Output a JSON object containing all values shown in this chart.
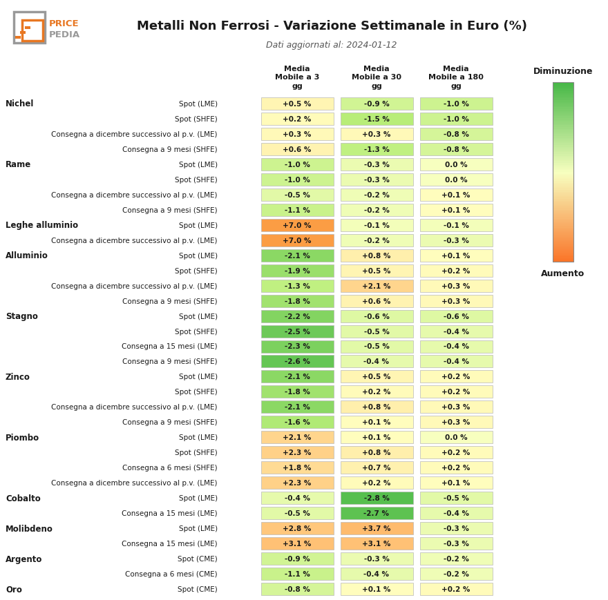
{
  "title": "Metalli Non Ferrosi - Variazione Settimanale in Euro (%)",
  "subtitle": "Dati aggiornati al: 2024-01-12",
  "col_headers": [
    "Media\nMobile a 3\ngg",
    "Media\nMobile a 30\ngg",
    "Media\nMobile a 180\ngg"
  ],
  "legend_top": "Diminuzione",
  "legend_bottom": "Aumento",
  "rows": [
    {
      "group": "Nichel",
      "label": "Spot (LME)",
      "vals": [
        0.5,
        -0.9,
        -1.0
      ]
    },
    {
      "group": null,
      "label": "Spot (SHFE)",
      "vals": [
        0.2,
        -1.5,
        -1.0
      ]
    },
    {
      "group": null,
      "label": "Consegna a dicembre successivo al p.v. (LME)",
      "vals": [
        0.3,
        0.3,
        -0.8
      ]
    },
    {
      "group": null,
      "label": "Consegna a 9 mesi (SHFE)",
      "vals": [
        0.6,
        -1.3,
        -0.8
      ]
    },
    {
      "group": "Rame",
      "label": "Spot (LME)",
      "vals": [
        -1.0,
        -0.3,
        0.0
      ]
    },
    {
      "group": null,
      "label": "Spot (SHFE)",
      "vals": [
        -1.0,
        -0.3,
        0.0
      ]
    },
    {
      "group": null,
      "label": "Consegna a dicembre successivo al p.v. (LME)",
      "vals": [
        -0.5,
        -0.2,
        0.1
      ]
    },
    {
      "group": null,
      "label": "Consegna a 9 mesi (SHFE)",
      "vals": [
        -1.1,
        -0.2,
        0.1
      ]
    },
    {
      "group": "Leghe alluminio",
      "label": "Spot (LME)",
      "vals": [
        7.0,
        -0.1,
        -0.1
      ]
    },
    {
      "group": null,
      "label": "Consegna a dicembre successivo al p.v. (LME)",
      "vals": [
        7.0,
        -0.2,
        -0.3
      ]
    },
    {
      "group": "Alluminio",
      "label": "Spot (LME)",
      "vals": [
        -2.1,
        0.8,
        0.1
      ]
    },
    {
      "group": null,
      "label": "Spot (SHFE)",
      "vals": [
        -1.9,
        0.5,
        0.2
      ]
    },
    {
      "group": null,
      "label": "Consegna a dicembre successivo al p.v. (LME)",
      "vals": [
        -1.3,
        2.1,
        0.3
      ]
    },
    {
      "group": null,
      "label": "Consegna a 9 mesi (SHFE)",
      "vals": [
        -1.8,
        0.6,
        0.3
      ]
    },
    {
      "group": "Stagno",
      "label": "Spot (LME)",
      "vals": [
        -2.2,
        -0.6,
        -0.6
      ]
    },
    {
      "group": null,
      "label": "Spot (SHFE)",
      "vals": [
        -2.5,
        -0.5,
        -0.4
      ]
    },
    {
      "group": null,
      "label": "Consegna a 15 mesi (LME)",
      "vals": [
        -2.3,
        -0.5,
        -0.4
      ]
    },
    {
      "group": null,
      "label": "Consegna a 9 mesi (SHFE)",
      "vals": [
        -2.6,
        -0.4,
        -0.4
      ]
    },
    {
      "group": "Zinco",
      "label": "Spot (LME)",
      "vals": [
        -2.1,
        0.5,
        0.2
      ]
    },
    {
      "group": null,
      "label": "Spot (SHFE)",
      "vals": [
        -1.8,
        0.2,
        0.2
      ]
    },
    {
      "group": null,
      "label": "Consegna a dicembre successivo al p.v. (LME)",
      "vals": [
        -2.1,
        0.8,
        0.3
      ]
    },
    {
      "group": null,
      "label": "Consegna a 9 mesi (SHFE)",
      "vals": [
        -1.6,
        0.1,
        0.3
      ]
    },
    {
      "group": "Piombo",
      "label": "Spot (LME)",
      "vals": [
        2.1,
        0.1,
        0.0
      ]
    },
    {
      "group": null,
      "label": "Spot (SHFE)",
      "vals": [
        2.3,
        0.8,
        0.2
      ]
    },
    {
      "group": null,
      "label": "Consegna a 6 mesi (SHFE)",
      "vals": [
        1.8,
        0.7,
        0.2
      ]
    },
    {
      "group": null,
      "label": "Consegna a dicembre successivo al p.v. (LME)",
      "vals": [
        2.3,
        0.2,
        0.1
      ]
    },
    {
      "group": "Cobalto",
      "label": "Spot (LME)",
      "vals": [
        -0.4,
        -2.8,
        -0.5
      ]
    },
    {
      "group": null,
      "label": "Consegna a 15 mesi (LME)",
      "vals": [
        -0.5,
        -2.7,
        -0.4
      ]
    },
    {
      "group": "Molibdeno",
      "label": "Spot (LME)",
      "vals": [
        2.8,
        3.7,
        -0.3
      ]
    },
    {
      "group": null,
      "label": "Consegna a 15 mesi (LME)",
      "vals": [
        3.1,
        3.1,
        -0.3
      ]
    },
    {
      "group": "Argento",
      "label": "Spot (CME)",
      "vals": [
        -0.9,
        -0.3,
        -0.2
      ]
    },
    {
      "group": null,
      "label": "Consegna a 6 mesi (CME)",
      "vals": [
        -1.1,
        -0.4,
        -0.2
      ]
    },
    {
      "group": "Oro",
      "label": "Spot (CME)",
      "vals": [
        -0.8,
        0.1,
        0.2
      ]
    }
  ],
  "bg_color": "#ffffff",
  "text_color": "#1a1a1a",
  "subtitle_color": "#555555",
  "title_fontsize": 13,
  "subtitle_fontsize": 9,
  "header_fontsize": 8,
  "label_fontsize": 7.5,
  "cell_fontsize": 7.5,
  "group_fontsize": 8.5
}
